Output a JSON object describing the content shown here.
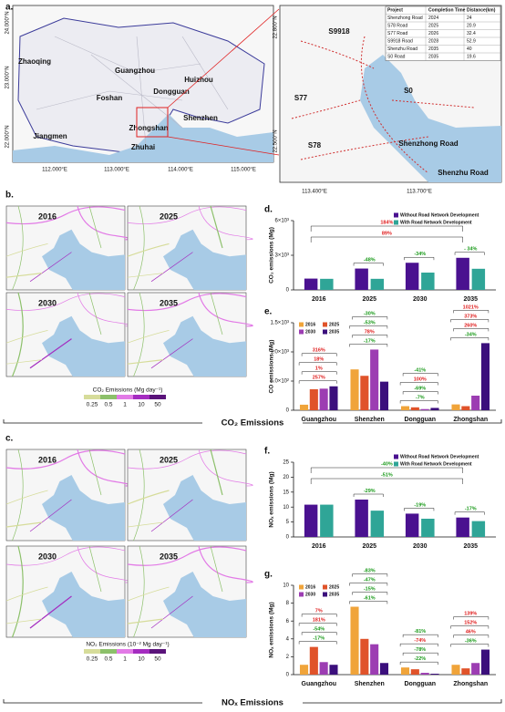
{
  "map_a": {
    "label": "a.",
    "cities": [
      "Zhaoqing",
      "Guangzhou",
      "Huizhou",
      "Foshan",
      "Dongguan",
      "Jiangmen",
      "Zhongshan",
      "Shenzhen",
      "Zhuhai"
    ],
    "lon_ticks": [
      "112.000°E",
      "113.000°E",
      "114.000°E",
      "115.000°E"
    ],
    "lat_ticks": [
      "24.000°N",
      "23.000°N",
      "22.000°N"
    ]
  },
  "inset": {
    "roads": [
      "S9918",
      "S77",
      "S0",
      "S78",
      "Shenzhong Road",
      "Shenzhu Road"
    ],
    "lat_ticks": [
      "22.800°N",
      "22.500°N"
    ],
    "lon_ticks": [
      "113.400°E",
      "113.700°E"
    ],
    "table": {
      "header": [
        "Project",
        "Completion Time",
        "Distance(km)"
      ],
      "rows": [
        [
          "Shenzhong Road",
          2024,
          24
        ],
        [
          "S78 Road",
          2025,
          20.9
        ],
        [
          "S77 Road",
          2026,
          32.4
        ],
        [
          "S9918 Road",
          2028,
          52.9
        ],
        [
          "Shenzhu Road",
          2035,
          40
        ],
        [
          "S0 Road",
          2035,
          19.6
        ]
      ]
    }
  },
  "panel_b": {
    "label": "b.",
    "years": [
      "2016",
      "2025",
      "2030",
      "2035"
    ],
    "legend_title": "CO₂ Emissions (Mg day⁻¹)",
    "legend_ticks": [
      0.25,
      0.5,
      1,
      10,
      50
    ],
    "legend_colors": [
      "#d6dc9a",
      "#8cc06a",
      "#e27ae6",
      "#a42cc0",
      "#5a137a"
    ],
    "banner": "CO₂ Emissions"
  },
  "panel_c": {
    "label": "c.",
    "years": [
      "2016",
      "2025",
      "2030",
      "2035"
    ],
    "legend_title": "NO₂ Emissions (10⁻² Mg day⁻¹)",
    "legend_ticks": [
      0.25,
      0.5,
      1,
      10,
      50
    ],
    "legend_colors": [
      "#d6dc9a",
      "#8cc06a",
      "#e27ae6",
      "#a42cc0",
      "#5a137a"
    ],
    "banner": "NOₓ Emissions"
  },
  "chart_data": [
    {
      "type": "bar",
      "panel_label": "d.",
      "ylabel": "CO₂ emissions (Mg)",
      "categories": [
        "2016",
        "2025",
        "2030",
        "2035"
      ],
      "series": [
        {
          "name": "Without Road Network Development",
          "color": "#4a1190",
          "values": [
            980,
            1850,
            2350,
            2780
          ]
        },
        {
          "name": "With Road Network Development",
          "color": "#2fa597",
          "values": [
            960,
            960,
            1500,
            1830
          ]
        }
      ],
      "ylim": [
        0,
        6000
      ],
      "yticks": [
        0,
        {
          "value": 3000,
          "label": "3×10³"
        },
        {
          "value": 6000,
          "label": "6×10³"
        }
      ],
      "legend": "upper right",
      "annotations": [
        [],
        [
          {
            "text": "-48%",
            "color": "#1a9a1a"
          }
        ],
        [
          {
            "text": "-34%",
            "color": "#1a9a1a"
          }
        ],
        [
          {
            "text": "- 34%",
            "color": "#1a9a1a"
          }
        ]
      ],
      "span_annotations": [
        {
          "text": "184%",
          "color": "#e02020"
        },
        {
          "text": "89%",
          "color": "#e02020"
        }
      ]
    },
    {
      "type": "bar",
      "panel_label": "e.",
      "ylabel": "CO emissions (Mg)",
      "categories": [
        "Guangzhou",
        "Shenzhen",
        "Dongguan",
        "Zhongshan"
      ],
      "series": [
        {
          "name": "2016",
          "color": "#f0a43a",
          "values": [
            95,
            700,
            70,
            100
          ]
        },
        {
          "name": "2025",
          "color": "#e0532a",
          "values": [
            360,
            590,
            50,
            70
          ]
        },
        {
          "name": "2030",
          "color": "#9c3db2",
          "values": [
            370,
            1040,
            20,
            250
          ]
        },
        {
          "name": "2035",
          "color": "#3b0f7c",
          "values": [
            410,
            490,
            40,
            1150
          ]
        }
      ],
      "ylim": [
        0,
        1500
      ],
      "yticks": [
        0,
        {
          "value": 500,
          "label": "5.0×10²"
        },
        {
          "value": 1000,
          "label": "1.0×10³"
        },
        {
          "value": 1500,
          "label": "1.5×10³"
        }
      ],
      "legend": "upper left",
      "annotations": [
        [
          {
            "text": "257%",
            "color": "#e02020"
          },
          {
            "text": "1%",
            "color": "#e02020"
          },
          {
            "text": "18%",
            "color": "#e02020"
          },
          {
            "text": "316%",
            "color": "#e02020"
          }
        ],
        [
          {
            "text": "-17%",
            "color": "#1a9a1a"
          },
          {
            "text": "78%",
            "color": "#e02020"
          },
          {
            "text": "-53%",
            "color": "#1a9a1a"
          },
          {
            "text": "-30%",
            "color": "#1a9a1a"
          }
        ],
        [
          {
            "text": "-7%",
            "color": "#1a9a1a"
          },
          {
            "text": "-69%",
            "color": "#1a9a1a"
          },
          {
            "text": "100%",
            "color": "#e02020"
          },
          {
            "text": "-41%",
            "color": "#1a9a1a"
          }
        ],
        [
          {
            "text": "-34%",
            "color": "#1a9a1a"
          },
          {
            "text": "260%",
            "color": "#e02020"
          },
          {
            "text": "373%",
            "color": "#e02020"
          },
          {
            "text": "1021%",
            "color": "#e02020"
          }
        ]
      ]
    },
    {
      "type": "bar",
      "panel_label": "f.",
      "ylabel": "NOₓ emissions (Mg)",
      "categories": [
        "2016",
        "2025",
        "2030",
        "2035"
      ],
      "series": [
        {
          "name": "Without Road Network Development",
          "color": "#4a1190",
          "values": [
            10.8,
            12.5,
            7.8,
            6.5
          ]
        },
        {
          "name": "With Road Network Development",
          "color": "#2fa597",
          "values": [
            10.8,
            8.8,
            6.1,
            5.3
          ]
        }
      ],
      "ylim": [
        0,
        25
      ],
      "yticks": [
        0,
        5,
        10,
        15,
        20,
        25
      ],
      "legend": "upper right",
      "annotations": [
        [],
        [
          {
            "text": "-29%",
            "color": "#1a9a1a"
          }
        ],
        [
          {
            "text": "-19%",
            "color": "#1a9a1a"
          }
        ],
        [
          {
            "text": "-17%",
            "color": "#1a9a1a"
          }
        ]
      ],
      "span_annotations": [
        {
          "text": "-40%",
          "color": "#1a9a1a"
        },
        {
          "text": "-51%",
          "color": "#1a9a1a"
        }
      ]
    },
    {
      "type": "bar",
      "panel_label": "g.",
      "ylabel": "NOₓ emissions (Mg)",
      "categories": [
        "Guangzhou",
        "Shenzhen",
        "Dongguan",
        "Zhongshan"
      ],
      "series": [
        {
          "name": "2016",
          "color": "#f0a43a",
          "values": [
            1.1,
            7.6,
            0.8,
            1.1
          ]
        },
        {
          "name": "2025",
          "color": "#e0532a",
          "values": [
            3.1,
            4.0,
            0.6,
            0.7
          ]
        },
        {
          "name": "2030",
          "color": "#9c3db2",
          "values": [
            1.4,
            3.4,
            0.2,
            1.3
          ]
        },
        {
          "name": "2035",
          "color": "#3b0f7c",
          "values": [
            1.1,
            1.3,
            0.1,
            2.8
          ]
        }
      ],
      "ylim": [
        0,
        10
      ],
      "yticks": [
        0,
        2,
        4,
        6,
        8,
        10
      ],
      "legend": "upper left",
      "annotations": [
        [
          {
            "text": "-17%",
            "color": "#1a9a1a"
          },
          {
            "text": "-54%",
            "color": "#1a9a1a"
          },
          {
            "text": "181%",
            "color": "#e02020"
          },
          {
            "text": "7%",
            "color": "#e02020"
          }
        ],
        [
          {
            "text": "-61%",
            "color": "#1a9a1a"
          },
          {
            "text": "-15%",
            "color": "#1a9a1a"
          },
          {
            "text": "-47%",
            "color": "#1a9a1a"
          },
          {
            "text": "-83%",
            "color": "#1a9a1a"
          }
        ],
        [
          {
            "text": "-22%",
            "color": "#1a9a1a"
          },
          {
            "text": "-78%",
            "color": "#1a9a1a"
          },
          {
            "text": "-74%",
            "color": "#e02020"
          },
          {
            "text": "-81%",
            "color": "#1a9a1a"
          }
        ],
        [
          {
            "text": "-36%",
            "color": "#1a9a1a"
          },
          {
            "text": "46%",
            "color": "#e02020"
          },
          {
            "text": "152%",
            "color": "#e02020"
          },
          {
            "text": "139%",
            "color": "#e02020"
          }
        ]
      ]
    }
  ]
}
